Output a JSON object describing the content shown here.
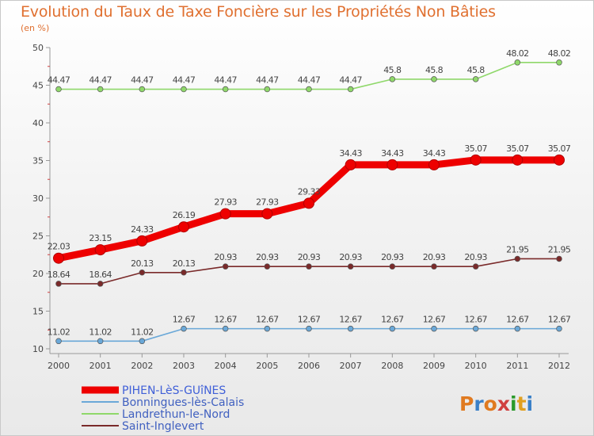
{
  "title": "Evolution du Taux de Taxe Foncière sur les Propriétés Non Bâties",
  "unit": "(en %)",
  "logo": "Proxiti",
  "chart_data": {
    "type": "line",
    "title": "Evolution du Taux de Taxe Foncière sur les Propriétés Non Bâties",
    "ylabel": "(en %)",
    "xlabel": "",
    "x": [
      "2000",
      "2001",
      "2002",
      "2003",
      "2004",
      "2005",
      "2006",
      "2007",
      "2008",
      "2009",
      "2010",
      "2011",
      "2012"
    ],
    "ylim": [
      10,
      50
    ],
    "yticks": [
      10,
      15,
      20,
      25,
      30,
      35,
      40,
      45,
      50
    ],
    "grid": false,
    "legend": "bottom-left",
    "series": [
      {
        "name": "PIHEN-LèS-GUîNES",
        "color": "#ee0000",
        "emphasis": true,
        "values": [
          22.03,
          23.15,
          24.33,
          26.19,
          27.93,
          27.93,
          29.33,
          34.43,
          34.43,
          34.43,
          35.07,
          35.07,
          35.07
        ],
        "labels": [
          "22.03",
          "23.15",
          "24.33",
          "26.19",
          "27.93",
          "27.93",
          "29.33",
          "34.43",
          "34.43",
          "34.43",
          "35.07",
          "35.07",
          "35.07"
        ]
      },
      {
        "name": "Bonningues-lès-Calais",
        "color": "#6aa8d8",
        "values": [
          11.02,
          11.02,
          11.02,
          12.67,
          12.67,
          12.67,
          12.67,
          12.67,
          12.67,
          12.67,
          12.67,
          12.67,
          12.67
        ],
        "labels": [
          "11.02",
          "11.02",
          "11.02",
          "12.67",
          "12.67",
          "12.67",
          "12.67",
          "12.67",
          "12.67",
          "12.67",
          "12.67",
          "12.67",
          "12.67"
        ]
      },
      {
        "name": "Landrethun-le-Nord",
        "color": "#8fd86a",
        "values": [
          44.47,
          44.47,
          44.47,
          44.47,
          44.47,
          44.47,
          44.47,
          44.47,
          45.8,
          45.8,
          45.8,
          48.02,
          48.02
        ],
        "labels": [
          "44.47",
          "44.47",
          "44.47",
          "44.47",
          "44.47",
          "44.47",
          "44.47",
          "44.47",
          "45.8",
          "45.8",
          "45.8",
          "48.02",
          "48.02"
        ]
      },
      {
        "name": "Saint-Inglevert",
        "color": "#7a2a2a",
        "values": [
          18.64,
          18.64,
          20.13,
          20.13,
          20.93,
          20.93,
          20.93,
          20.93,
          20.93,
          20.93,
          20.93,
          21.95,
          21.95
        ],
        "labels": [
          "18.64",
          "18.64",
          "20.13",
          "20.13",
          "20.93",
          "20.93",
          "20.93",
          "20.93",
          "20.93",
          "20.93",
          "20.93",
          "21.95",
          "21.95"
        ]
      }
    ]
  }
}
